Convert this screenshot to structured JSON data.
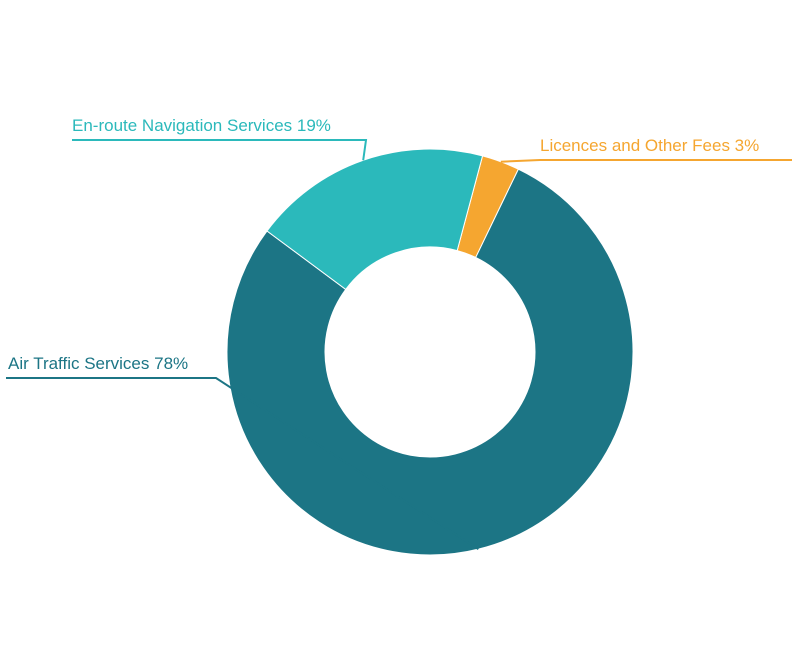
{
  "chart_data": {
    "type": "pie",
    "hole": true,
    "title": "",
    "slices": [
      {
        "label": "Licences and Other Fees",
        "percent_text": "3%",
        "value": 3,
        "color": "#f5a630"
      },
      {
        "label": "Air Traffic Services",
        "percent_text": "78%",
        "value": 78,
        "color": "#1c7585"
      },
      {
        "label": "En-route Navigation Services",
        "percent_text": "19%",
        "value": 19,
        "color": "#2bb9bb"
      }
    ],
    "legend": "none (labels with leader lines)"
  }
}
